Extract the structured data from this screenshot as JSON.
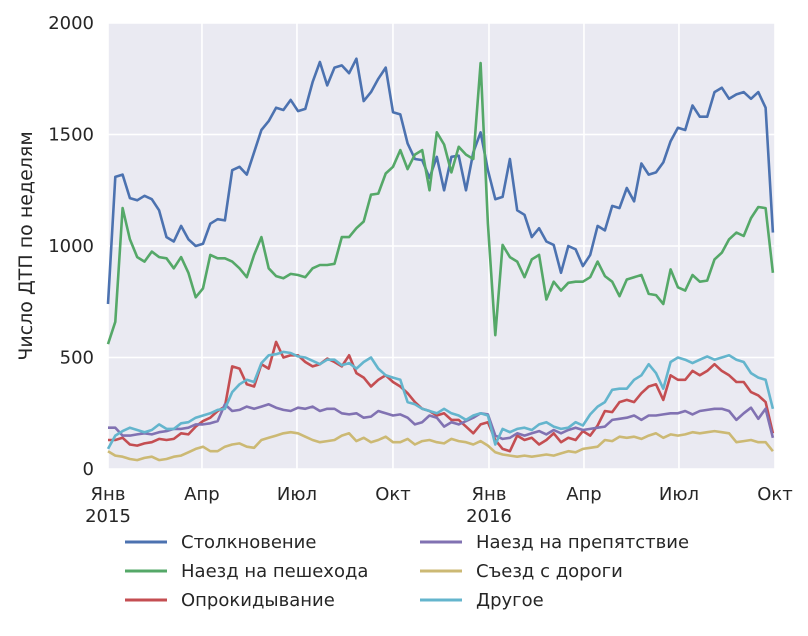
{
  "chart_data": {
    "type": "line",
    "title": "",
    "xlabel": "",
    "ylabel": "Число ДТП по неделям",
    "ylim": [
      0,
      2000
    ],
    "xlim": [
      "2015-01-01",
      "2016-10-01"
    ],
    "yticks": [
      0,
      500,
      1000,
      1500,
      2000
    ],
    "xticks": [
      {
        "date": "2015-01-01",
        "label": "Янв",
        "sublabel": "2015"
      },
      {
        "date": "2015-04-01",
        "label": "Апр",
        "sublabel": ""
      },
      {
        "date": "2015-07-01",
        "label": "Июл",
        "sublabel": ""
      },
      {
        "date": "2015-10-01",
        "label": "Окт",
        "sublabel": ""
      },
      {
        "date": "2016-01-01",
        "label": "Янв",
        "sublabel": "2016"
      },
      {
        "date": "2016-04-01",
        "label": "Апр",
        "sublabel": ""
      },
      {
        "date": "2016-07-01",
        "label": "Июл",
        "sublabel": ""
      },
      {
        "date": "2016-10-01",
        "label": "Окт",
        "sublabel": ""
      }
    ],
    "grid": true,
    "legend_position": "bottom",
    "background": "#eaeaf2",
    "x": [
      "2015-01-01",
      "2015-01-08",
      "2015-01-15",
      "2015-01-22",
      "2015-01-29",
      "2015-02-05",
      "2015-02-12",
      "2015-02-19",
      "2015-02-26",
      "2015-03-05",
      "2015-03-12",
      "2015-03-19",
      "2015-03-26",
      "2015-04-02",
      "2015-04-09",
      "2015-04-16",
      "2015-04-23",
      "2015-04-30",
      "2015-05-07",
      "2015-05-14",
      "2015-05-21",
      "2015-05-28",
      "2015-06-04",
      "2015-06-11",
      "2015-06-18",
      "2015-06-25",
      "2015-07-02",
      "2015-07-09",
      "2015-07-16",
      "2015-07-23",
      "2015-07-30",
      "2015-08-06",
      "2015-08-13",
      "2015-08-20",
      "2015-08-27",
      "2015-09-03",
      "2015-09-10",
      "2015-09-17",
      "2015-09-24",
      "2015-10-01",
      "2015-10-08",
      "2015-10-15",
      "2015-10-22",
      "2015-10-29",
      "2015-11-05",
      "2015-11-12",
      "2015-11-19",
      "2015-11-26",
      "2015-12-03",
      "2015-12-10",
      "2015-12-17",
      "2015-12-24",
      "2015-12-31",
      "2016-01-07",
      "2016-01-14",
      "2016-01-21",
      "2016-01-28",
      "2016-02-04",
      "2016-02-11",
      "2016-02-18",
      "2016-02-25",
      "2016-03-03",
      "2016-03-10",
      "2016-03-17",
      "2016-03-24",
      "2016-03-31",
      "2016-04-07",
      "2016-04-14",
      "2016-04-21",
      "2016-04-28",
      "2016-05-05",
      "2016-05-12",
      "2016-05-19",
      "2016-05-26",
      "2016-06-02",
      "2016-06-09",
      "2016-06-16",
      "2016-06-23",
      "2016-06-30",
      "2016-07-07",
      "2016-07-14",
      "2016-07-21",
      "2016-07-28",
      "2016-08-04",
      "2016-08-11",
      "2016-08-18",
      "2016-08-25",
      "2016-09-01",
      "2016-09-08",
      "2016-09-15",
      "2016-09-22",
      "2016-09-29"
    ],
    "series": [
      {
        "name": "Столкновение",
        "color": "#4c72b0",
        "values": [
          740,
          1310,
          1320,
          1215,
          1205,
          1225,
          1210,
          1160,
          1040,
          1020,
          1090,
          1030,
          1000,
          1010,
          1100,
          1120,
          1115,
          1340,
          1355,
          1320,
          1420,
          1520,
          1560,
          1620,
          1610,
          1655,
          1605,
          1615,
          1735,
          1825,
          1720,
          1800,
          1810,
          1775,
          1840,
          1650,
          1690,
          1750,
          1800,
          1600,
          1590,
          1460,
          1390,
          1385,
          1305,
          1400,
          1250,
          1400,
          1405,
          1250,
          1420,
          1510,
          1340,
          1210,
          1220,
          1390,
          1160,
          1140,
          1040,
          1080,
          1020,
          1005,
          880,
          1000,
          985,
          910,
          960,
          1090,
          1070,
          1180,
          1170,
          1260,
          1200,
          1370,
          1320,
          1330,
          1375,
          1470,
          1530,
          1520,
          1630,
          1580,
          1580,
          1690,
          1710,
          1660,
          1680,
          1690,
          1660,
          1690,
          1620,
          1060
        ]
      },
      {
        "name": "Наезд на пешехода",
        "color": "#55a868",
        "values": [
          560,
          660,
          1170,
          1030,
          950,
          930,
          975,
          950,
          945,
          900,
          950,
          880,
          770,
          810,
          960,
          945,
          945,
          930,
          900,
          860,
          960,
          1040,
          900,
          865,
          855,
          875,
          870,
          860,
          900,
          915,
          915,
          920,
          1040,
          1040,
          1080,
          1110,
          1230,
          1235,
          1325,
          1355,
          1430,
          1345,
          1410,
          1430,
          1250,
          1510,
          1455,
          1330,
          1445,
          1410,
          1390,
          1820,
          1100,
          600,
          1005,
          950,
          930,
          860,
          940,
          960,
          760,
          840,
          800,
          835,
          840,
          840,
          860,
          930,
          865,
          840,
          775,
          850,
          860,
          870,
          785,
          780,
          740,
          895,
          815,
          800,
          870,
          840,
          845,
          940,
          970,
          1030,
          1060,
          1045,
          1125,
          1175,
          1170,
          880
        ]
      },
      {
        "name": "Опрокидывание",
        "color": "#c44e52",
        "values": [
          130,
          130,
          140,
          110,
          105,
          115,
          120,
          135,
          130,
          135,
          160,
          155,
          190,
          215,
          230,
          260,
          280,
          460,
          450,
          380,
          370,
          470,
          450,
          570,
          500,
          510,
          510,
          480,
          460,
          470,
          495,
          480,
          460,
          510,
          430,
          410,
          370,
          400,
          420,
          390,
          370,
          340,
          300,
          270,
          260,
          240,
          250,
          220,
          220,
          190,
          160,
          200,
          210,
          130,
          90,
          80,
          150,
          130,
          140,
          110,
          130,
          160,
          120,
          140,
          130,
          170,
          150,
          195,
          260,
          255,
          300,
          310,
          300,
          340,
          370,
          380,
          310,
          420,
          400,
          400,
          440,
          420,
          440,
          470,
          440,
          420,
          390,
          390,
          345,
          330,
          300,
          160
        ]
      },
      {
        "name": "Наезд на препятствие",
        "color": "#8172b2",
        "values": [
          185,
          185,
          150,
          150,
          155,
          160,
          155,
          165,
          170,
          180,
          180,
          185,
          200,
          200,
          205,
          215,
          290,
          260,
          265,
          280,
          270,
          280,
          290,
          275,
          265,
          260,
          275,
          270,
          280,
          260,
          270,
          270,
          250,
          245,
          250,
          230,
          235,
          260,
          250,
          240,
          245,
          230,
          200,
          210,
          240,
          230,
          190,
          210,
          200,
          215,
          230,
          250,
          245,
          150,
          135,
          140,
          160,
          150,
          160,
          170,
          155,
          175,
          160,
          175,
          185,
          175,
          180,
          185,
          190,
          220,
          225,
          230,
          240,
          220,
          240,
          240,
          245,
          250,
          250,
          260,
          245,
          260,
          265,
          270,
          270,
          260,
          220,
          250,
          275,
          225,
          270,
          140
        ]
      },
      {
        "name": "Съезд с дороги",
        "color": "#ccb974",
        "values": [
          80,
          60,
          55,
          45,
          40,
          50,
          55,
          40,
          45,
          55,
          60,
          75,
          90,
          100,
          80,
          80,
          100,
          110,
          115,
          100,
          95,
          130,
          140,
          150,
          160,
          165,
          160,
          145,
          130,
          120,
          125,
          130,
          150,
          160,
          125,
          140,
          120,
          130,
          145,
          120,
          120,
          135,
          110,
          125,
          130,
          120,
          115,
          135,
          125,
          120,
          110,
          125,
          105,
          75,
          65,
          60,
          55,
          60,
          55,
          60,
          65,
          60,
          70,
          80,
          75,
          90,
          95,
          100,
          130,
          125,
          145,
          140,
          145,
          135,
          150,
          160,
          140,
          155,
          150,
          155,
          165,
          160,
          165,
          170,
          165,
          160,
          120,
          125,
          130,
          120,
          120,
          80
        ]
      },
      {
        "name": "Другое",
        "color": "#64b5cd",
        "values": [
          90,
          150,
          170,
          185,
          175,
          165,
          175,
          200,
          180,
          180,
          205,
          210,
          230,
          240,
          250,
          265,
          270,
          345,
          380,
          400,
          390,
          475,
          510,
          515,
          525,
          520,
          505,
          500,
          485,
          470,
          490,
          490,
          465,
          475,
          450,
          480,
          500,
          450,
          420,
          410,
          400,
          300,
          290,
          270,
          260,
          250,
          270,
          250,
          240,
          220,
          240,
          250,
          240,
          110,
          180,
          165,
          180,
          185,
          175,
          200,
          210,
          190,
          180,
          185,
          210,
          195,
          245,
          280,
          300,
          355,
          360,
          360,
          400,
          420,
          470,
          430,
          360,
          480,
          500,
          490,
          475,
          490,
          505,
          490,
          500,
          510,
          490,
          480,
          430,
          410,
          400,
          270
        ]
      }
    ]
  }
}
